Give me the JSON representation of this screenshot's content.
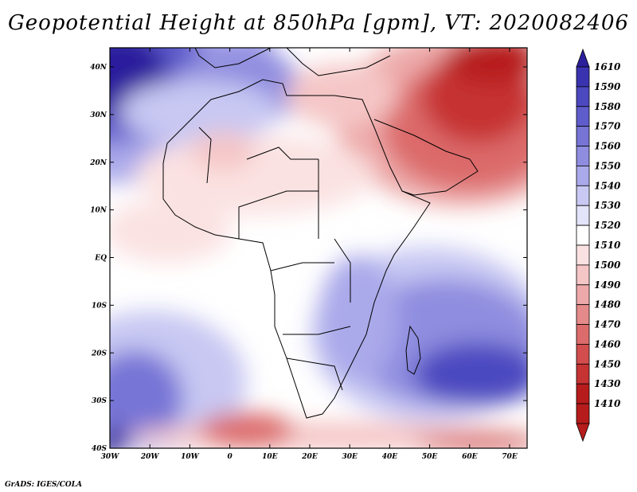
{
  "title": "Geopotential Height at 850hPa [gpm], VT: 2020082406",
  "footer": "GrADS: IGES/COLA",
  "axes": {
    "x_ticks": [
      "30W",
      "20W",
      "10W",
      "0",
      "10E",
      "20E",
      "30E",
      "40E",
      "50E",
      "60E",
      "70E"
    ],
    "y_ticks": [
      "40N",
      "30N",
      "20N",
      "10N",
      "EQ",
      "10S",
      "20S",
      "30S",
      "40S"
    ]
  },
  "colorbar": {
    "levels": [
      "1610",
      "1590",
      "1580",
      "1570",
      "1560",
      "1550",
      "1540",
      "1530",
      "1520",
      "1510",
      "1500",
      "1490",
      "1480",
      "1470",
      "1460",
      "1450",
      "1430",
      "1410"
    ],
    "colors": [
      "#2b1f9c",
      "#3a33b0",
      "#4c48c0",
      "#5f5ccb",
      "#7774d6",
      "#8f8ddf",
      "#aaa9ea",
      "#c8c8f3",
      "#e3e3fa",
      "#ffffff",
      "#fbe2e2",
      "#f5c6c6",
      "#eda9a9",
      "#e58a8a",
      "#dc6b6b",
      "#d24d4d",
      "#c63333",
      "#b71c1c"
    ]
  },
  "colors": {
    "frame": "#000000",
    "coastline": "#000000"
  }
}
